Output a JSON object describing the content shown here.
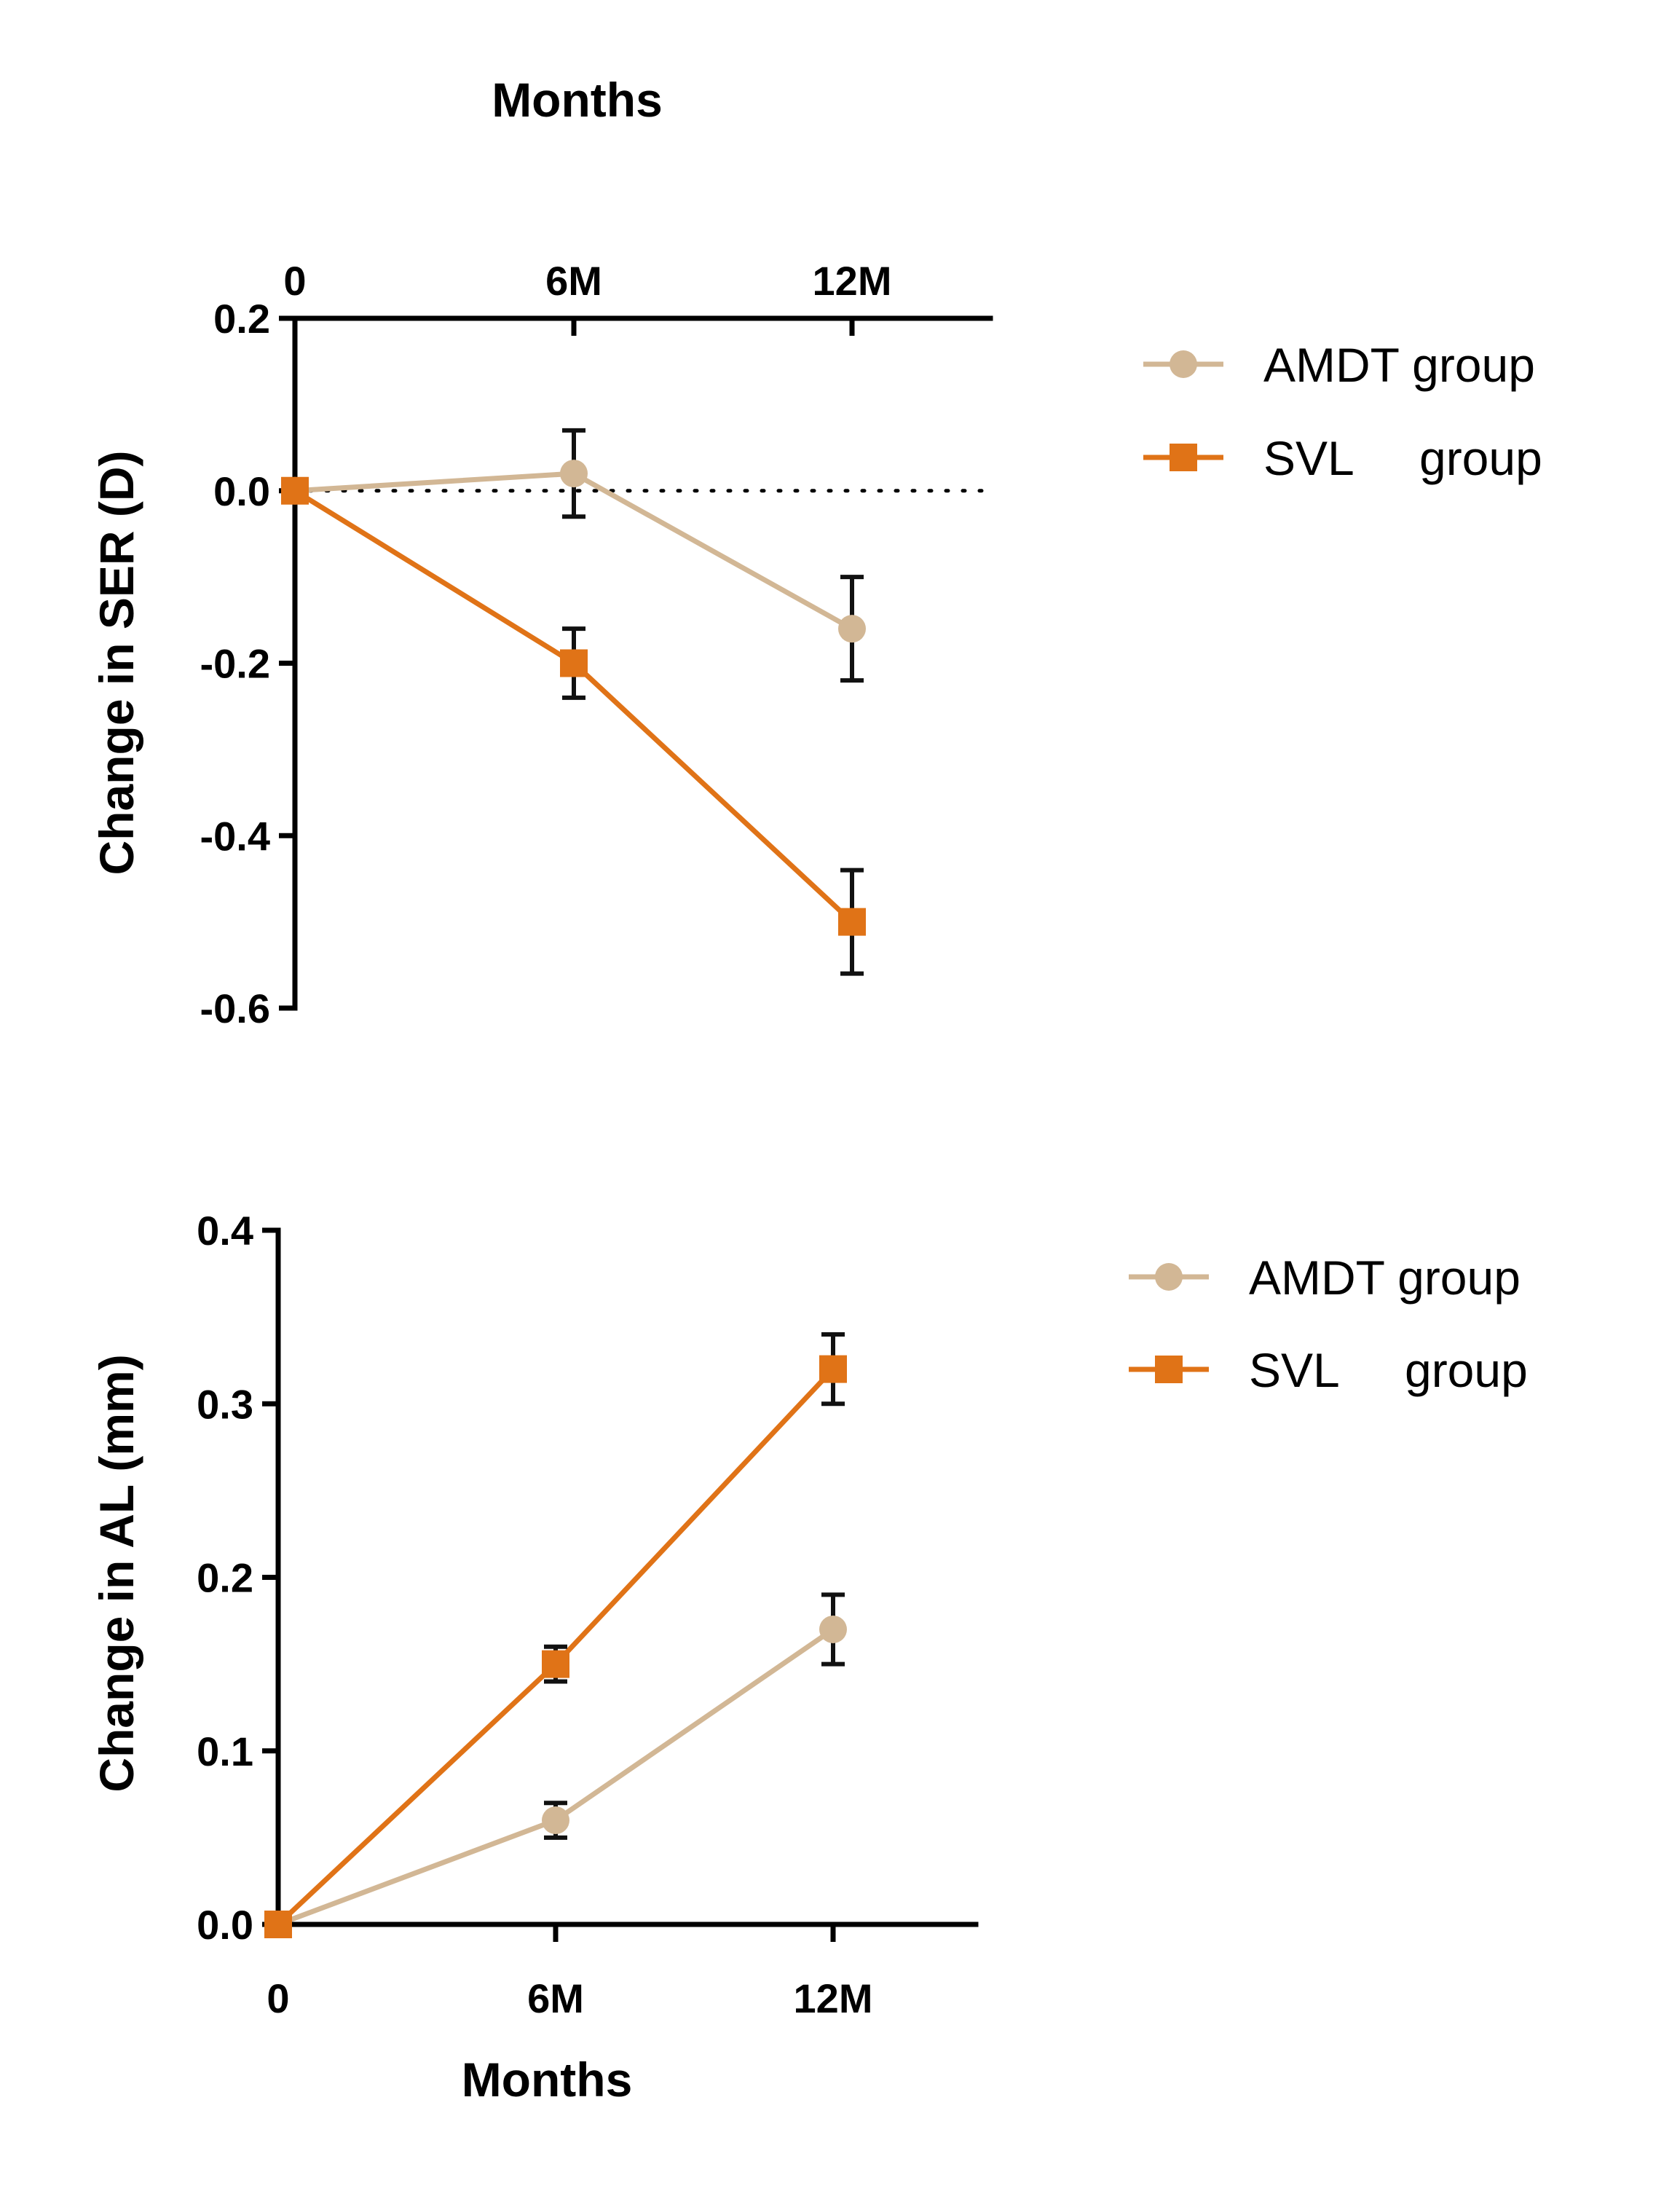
{
  "colors": {
    "amdt": "#D2B795",
    "svl": "#E07317",
    "axis": "#000000"
  },
  "chart_data": [
    {
      "type": "line",
      "id": "ser",
      "title": "",
      "xlabel": "Months",
      "xaxis_position": "top",
      "ylabel": "Change in SER (D)",
      "categories": [
        "0",
        "6M",
        "12M"
      ],
      "x_tick_labels": [
        "0",
        "6M",
        "12M"
      ],
      "ylim": [
        -0.6,
        0.2
      ],
      "y_ticks": [
        0.2,
        0.0,
        -0.2,
        -0.4,
        -0.6
      ],
      "y_tick_labels": [
        "0.2",
        "0.0",
        "-0.2",
        "-0.4",
        "-0.6"
      ],
      "reference_line": {
        "value": 0.0,
        "style": "dotted"
      },
      "legend_position": "right",
      "series": [
        {
          "name": "AMDT group",
          "marker": "circle",
          "color_key": "amdt",
          "values": [
            0.0,
            0.02,
            -0.16
          ],
          "errors": [
            0,
            0.05,
            0.06
          ]
        },
        {
          "name": "SVL     group",
          "marker": "square",
          "color_key": "svl",
          "values": [
            0.0,
            -0.2,
            -0.5
          ],
          "errors": [
            0,
            0.04,
            0.06
          ]
        }
      ]
    },
    {
      "type": "line",
      "id": "al",
      "title": "",
      "xlabel": "Months",
      "xaxis_position": "bottom",
      "ylabel": "Change in AL (mm)",
      "categories": [
        "0",
        "6M",
        "12M"
      ],
      "x_tick_labels": [
        "0",
        "6M",
        "12M"
      ],
      "ylim": [
        0.0,
        0.4
      ],
      "y_ticks": [
        0.0,
        0.1,
        0.2,
        0.3,
        0.4
      ],
      "y_tick_labels": [
        "0.0",
        "0.1",
        "0.2",
        "0.3",
        "0.4"
      ],
      "legend_position": "right",
      "series": [
        {
          "name": "AMDT group",
          "marker": "circle",
          "color_key": "amdt",
          "values": [
            0.0,
            0.06,
            0.17
          ],
          "errors": [
            0,
            0.01,
            0.02
          ]
        },
        {
          "name": "SVL     group",
          "marker": "square",
          "color_key": "svl",
          "values": [
            0.0,
            0.15,
            0.32
          ],
          "errors": [
            0,
            0.01,
            0.02
          ]
        }
      ]
    }
  ]
}
